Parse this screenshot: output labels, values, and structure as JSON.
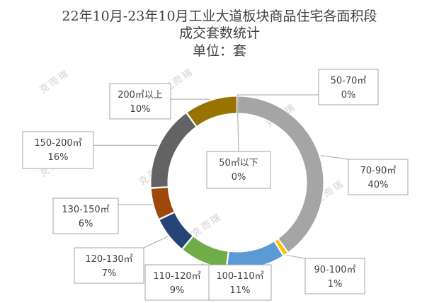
{
  "chart_data": {
    "type": "pie",
    "variant": "donut",
    "title": [
      "22年10月-23年10月工业大道板块商品住宅各面积段",
      "成交套数统计",
      "单位：套"
    ],
    "categories": [
      "50㎡以下",
      "50-70㎡",
      "70-90㎡",
      "90-100㎡",
      "100-110㎡",
      "110-120㎡",
      "120-130㎡",
      "130-150㎡",
      "150-200㎡",
      "200㎡以上"
    ],
    "values": [
      0,
      0,
      40,
      1,
      11,
      9,
      7,
      6,
      16,
      10
    ],
    "value_labels": [
      "0%",
      "0%",
      "40%",
      "1%",
      "11%",
      "9%",
      "7%",
      "6%",
      "16%",
      "10%"
    ],
    "colors": [
      "#4472c4",
      "#ed7d31",
      "#a5a5a5",
      "#ffc000",
      "#5b9bd5",
      "#70ad47",
      "#264478",
      "#9e480e",
      "#636363",
      "#997300"
    ],
    "watermark": "克而瑞"
  }
}
